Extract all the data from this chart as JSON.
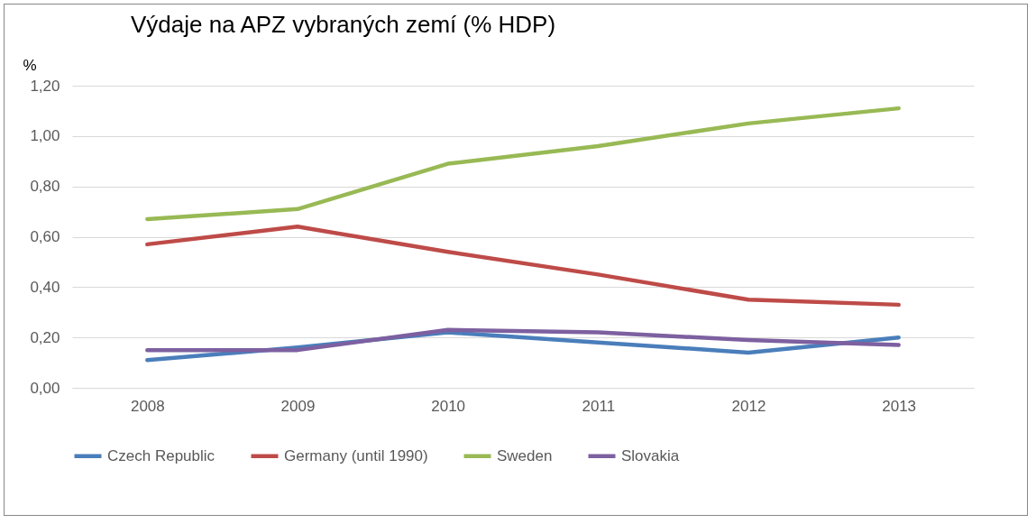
{
  "chart_data": {
    "type": "line",
    "title": "Výdaje  na APZ vybraných zemí (% HDP)",
    "ylabel": "%",
    "categories": [
      "2008",
      "2009",
      "2010",
      "2011",
      "2012",
      "2013"
    ],
    "series": [
      {
        "name": "Czech Republic",
        "color": "#4a7ebb",
        "values": [
          0.11,
          0.16,
          0.22,
          0.18,
          0.14,
          0.2
        ]
      },
      {
        "name": "Germany (until 1990)",
        "color": "#be4b48",
        "values": [
          0.57,
          0.64,
          0.54,
          0.45,
          0.35,
          0.33
        ]
      },
      {
        "name": "Sweden",
        "color": "#98b954",
        "values": [
          0.67,
          0.71,
          0.89,
          0.96,
          1.05,
          1.11
        ]
      },
      {
        "name": "Slovakia",
        "color": "#7d60a0",
        "values": [
          0.15,
          0.15,
          0.23,
          0.22,
          0.19,
          0.17
        ]
      }
    ],
    "ylim": [
      0,
      1.2
    ],
    "yticks": [
      {
        "value": 0,
        "label": "0,00"
      },
      {
        "value": 0.2,
        "label": "0,20"
      },
      {
        "value": 0.4,
        "label": "0,40"
      },
      {
        "value": 0.6,
        "label": "0,60"
      },
      {
        "value": 0.8,
        "label": "0,80"
      },
      {
        "value": 1,
        "label": "1,00"
      },
      {
        "value": 1.2,
        "label": "1,20"
      }
    ],
    "grid": "y",
    "legend": "bottom",
    "marker": "none",
    "line_style": "solid"
  }
}
